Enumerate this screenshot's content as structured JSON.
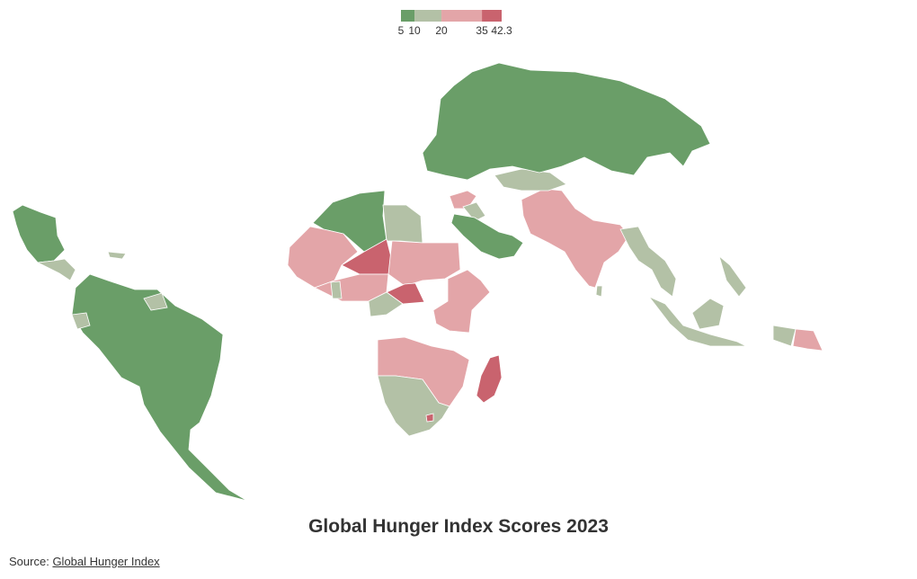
{
  "legend": {
    "bins": [
      5,
      10,
      20,
      35,
      42.3
    ],
    "colors": [
      "#6a9e68",
      "#b3c1a6",
      "#e3a5a8",
      "#c9636e"
    ]
  },
  "title": "Global Hunger Index Scores 2023",
  "source": {
    "label": "Source:",
    "link": "Global Hunger Index"
  }
}
